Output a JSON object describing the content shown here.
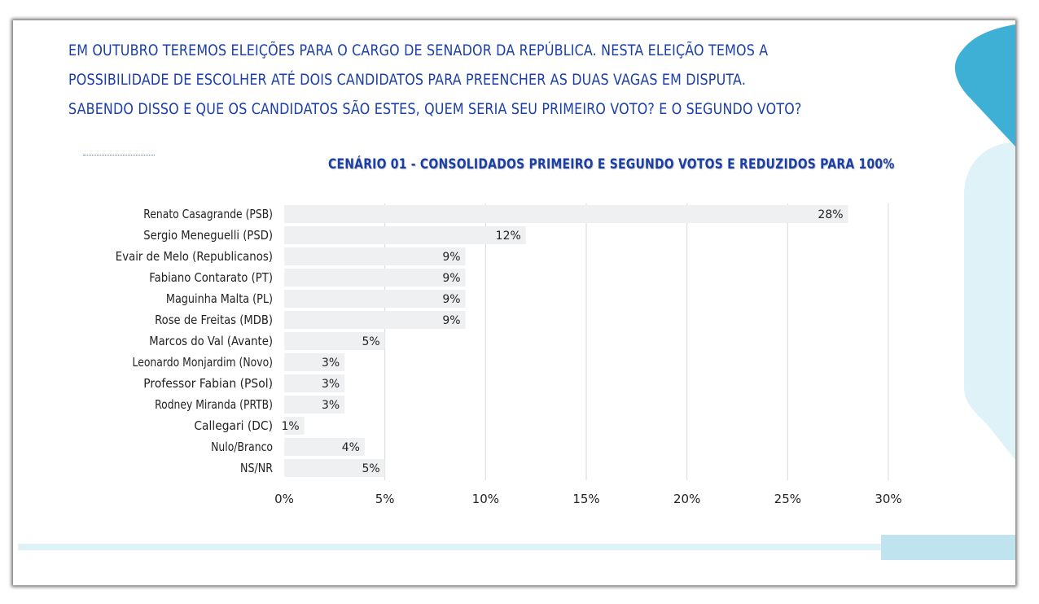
{
  "question": {
    "lines": [
      "EM OUTUBRO TEREMOS ELEIÇÕES PARA O CARGO DE SENADOR DA REPÚBLICA. NESTA ELEIÇÃO TEMOS A",
      "POSSIBILIDADE DE ESCOLHER ATÉ DOIS CANDIDATOS PARA PREENCHER AS DUAS VAGAS EM DISPUTA.",
      "SABENDO DISSO E QUE OS CANDIDATOS SÃO ESTES, QUEM SERIA SEU PRIMEIRO VOTO? E O SEGUNDO VOTO?"
    ]
  },
  "colors": {
    "text_blue": "#1b3fa6",
    "bar_fill": "#eff0f1",
    "grid": "#d9d9d9",
    "deco_dark": "#3eb0d6",
    "deco_light": "#dff2f8",
    "deco_strip": "#bfe3ef"
  },
  "chart_data": {
    "type": "bar",
    "orientation": "horizontal",
    "title": "CENÁRIO 01 - CONSOLIDADOS PRIMEIRO E SEGUNDO VOTOS E REDUZIDOS PARA 100%",
    "categories": [
      "Renato Casagrande (PSB)",
      "Sergio Meneguelli (PSD)",
      "Evair de Melo (Republicanos)",
      "Fabiano Contarato (PT)",
      "Maguinha Malta (PL)",
      "Rose de Freitas (MDB)",
      "Marcos do Val (Avante)",
      "Leonardo Monjardim (Novo)",
      "Professor Fabian (PSol)",
      "Rodney Miranda (PRTB)",
      "Callegari (DC)",
      "Nulo/Branco",
      "NS/NR"
    ],
    "values": [
      28,
      12,
      9,
      9,
      9,
      9,
      5,
      3,
      3,
      3,
      1,
      4,
      5
    ],
    "value_labels": [
      "28%",
      "12%",
      "9%",
      "9%",
      "9%",
      "9%",
      "5%",
      "3%",
      "3%",
      "3%",
      "1%",
      "4%",
      "5%"
    ],
    "xlim": [
      0,
      30
    ],
    "xticks": [
      0,
      5,
      10,
      15,
      20,
      25,
      30
    ],
    "xtick_labels": [
      "0%",
      "5%",
      "10%",
      "15%",
      "20%",
      "25%",
      "30%"
    ],
    "grid": true,
    "legend": "none"
  }
}
